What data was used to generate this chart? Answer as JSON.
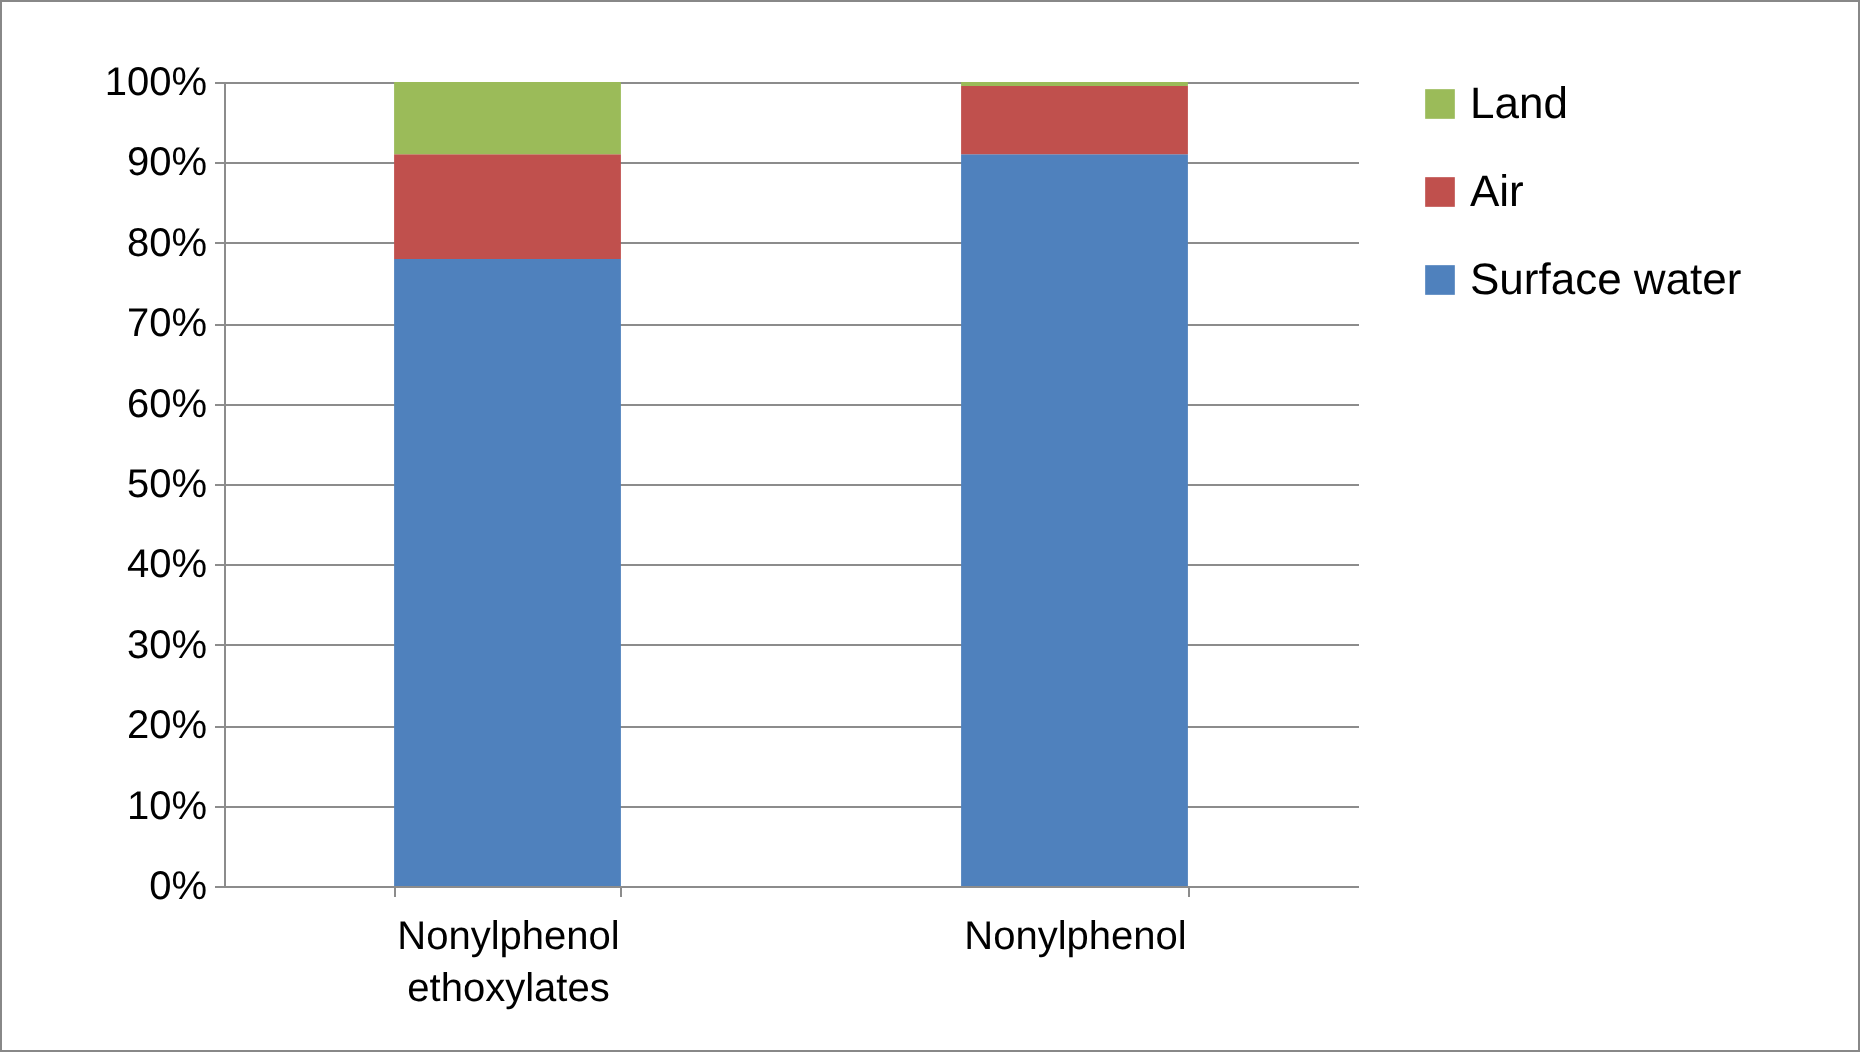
{
  "chart_data": {
    "type": "bar",
    "stacked": true,
    "categories": [
      "Nonylphenol ethoxylates",
      "Nonylphenol"
    ],
    "series": [
      {
        "name": "Surface water",
        "color": "#4f81bd",
        "values": [
          78,
          91
        ]
      },
      {
        "name": "Air",
        "color": "#c0504d",
        "values": [
          13,
          8.5
        ]
      },
      {
        "name": "Land",
        "color": "#9bbb59",
        "values": [
          9,
          0.5
        ]
      }
    ],
    "ylim": [
      0,
      100
    ],
    "yticks": [
      {
        "value": 0,
        "label": "0%"
      },
      {
        "value": 10,
        "label": "10%"
      },
      {
        "value": 20,
        "label": "20%"
      },
      {
        "value": 30,
        "label": "30%"
      },
      {
        "value": 40,
        "label": "40%"
      },
      {
        "value": 50,
        "label": "50%"
      },
      {
        "value": 60,
        "label": "60%"
      },
      {
        "value": 70,
        "label": "70%"
      },
      {
        "value": 80,
        "label": "80%"
      },
      {
        "value": 90,
        "label": "90%"
      },
      {
        "value": 100,
        "label": "100%"
      }
    ],
    "grid": "y",
    "legend": "right"
  }
}
